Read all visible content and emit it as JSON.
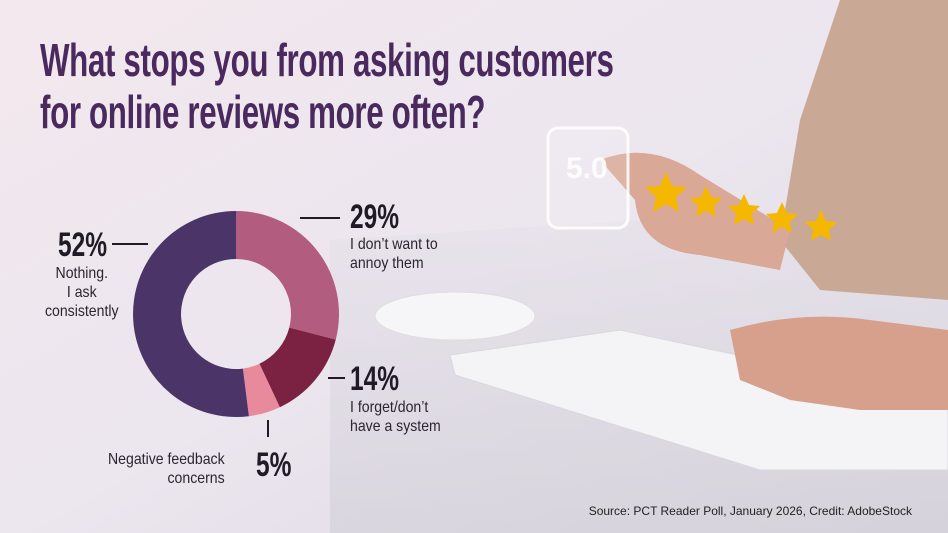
{
  "chart_data": {
    "type": "donut",
    "title": "What stops you from asking customers\nfor online reviews more often?",
    "categories": [
      "I don’t want to\nannoy them",
      "I forget/don’t\nhave a system",
      "Negative feedback\nconcerns",
      "Nothing.\nI ask\nconsistently"
    ],
    "values": [
      29,
      14,
      5,
      52
    ],
    "value_labels": [
      "29%",
      "14%",
      "5%",
      "52%"
    ],
    "colors": [
      "#b25c80",
      "#7b2142",
      "#e98a9c",
      "#4b3568"
    ],
    "source": "Source: PCT Reader Poll, January 2026, Credit: AdobeStock",
    "image_badge": "5.0"
  }
}
